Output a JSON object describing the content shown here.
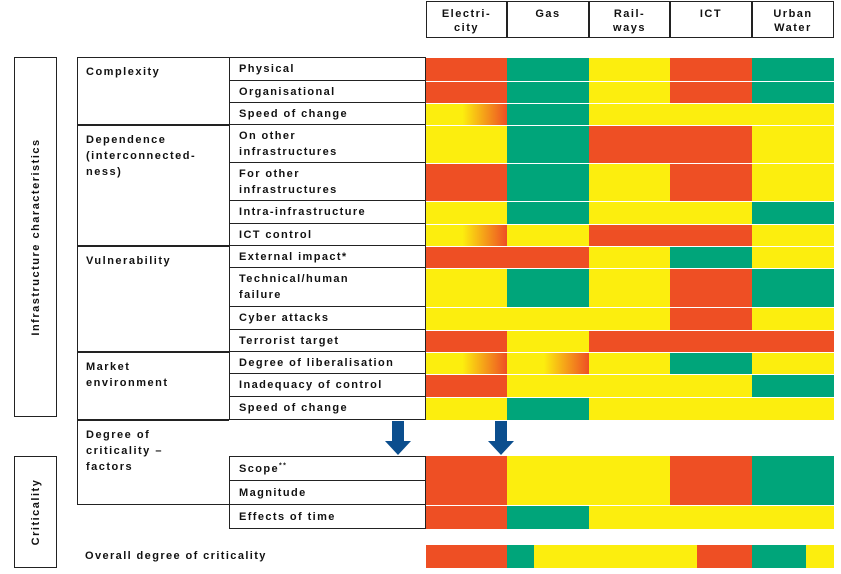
{
  "colors": {
    "red": "#ee4f24",
    "yellow": "#fcee0e",
    "green": "#00a57a",
    "arrow": "#0b4e8e"
  },
  "headers": [
    "Electri-\ncity",
    "Gas",
    "Rail-\nways",
    "ICT",
    "Urban\nWater"
  ],
  "side_labels": {
    "characteristics": "Infrastructure characteristics",
    "criticality": "Criticality"
  },
  "groups": [
    {
      "title": "Complexity"
    },
    {
      "title": "Dependence\n(interconnected-\nness)"
    },
    {
      "title": "Vulnerability"
    },
    {
      "title": "Market\nenvironment"
    },
    {
      "title": "Degree of\ncriticality –\nfactors"
    }
  ],
  "rows": [
    {
      "label": "Physical",
      "cells": [
        "red",
        "green",
        "yellow",
        "red",
        "green"
      ]
    },
    {
      "label": "Organisational",
      "cells": [
        "red",
        "green",
        "yellow",
        "red",
        "green"
      ]
    },
    {
      "label": "Speed of change",
      "cells": [
        "yellow-to-red",
        "green",
        "yellow",
        "yellow",
        "yellow"
      ]
    },
    {
      "label": "On other\ninfrastructures",
      "cells": [
        "yellow",
        "green",
        "red",
        "red",
        "yellow"
      ]
    },
    {
      "label": "For other\ninfrastructures",
      "cells": [
        "red",
        "green",
        "yellow",
        "red",
        "yellow"
      ]
    },
    {
      "label": "Intra-infrastructure",
      "cells": [
        "yellow",
        "green",
        "yellow",
        "yellow",
        "green"
      ]
    },
    {
      "label": "ICT control",
      "cells": [
        "yellow-to-red",
        "yellow",
        "red",
        "red",
        "yellow"
      ]
    },
    {
      "label": "External impact*",
      "cells": [
        "red",
        "red",
        "yellow",
        "green",
        "yellow"
      ]
    },
    {
      "label": "Technical/human\nfailure",
      "cells": [
        "yellow",
        "green",
        "yellow",
        "red",
        "green"
      ]
    },
    {
      "label": "Cyber attacks",
      "cells": [
        "yellow",
        "yellow",
        "yellow",
        "red",
        "yellow"
      ]
    },
    {
      "label": "Terrorist target",
      "cells": [
        "red",
        "yellow",
        "red",
        "red",
        "red"
      ]
    },
    {
      "label": "Degree of liberalisation",
      "cells": [
        "yellow-to-red",
        "yellow-to-red",
        "yellow",
        "green",
        "yellow"
      ]
    },
    {
      "label": "Inadequacy of control",
      "cells": [
        "red",
        "yellow",
        "yellow",
        "yellow",
        "green"
      ]
    },
    {
      "label": "Speed of change",
      "cells": [
        "yellow",
        "green",
        "yellow",
        "yellow",
        "yellow"
      ]
    },
    {
      "label": "Scope",
      "note": "**",
      "cells": [
        "red",
        "yellow",
        "yellow",
        "red",
        "green"
      ]
    },
    {
      "label": "Magnitude",
      "cells": [
        "red",
        "yellow",
        "yellow",
        "red",
        "green"
      ]
    },
    {
      "label": "Effects of time",
      "cells": [
        "red",
        "green",
        "yellow",
        "yellow",
        "yellow"
      ]
    },
    {
      "label": "Overall degree of criticality",
      "cells": [
        "red",
        "green-yellow",
        "yellow",
        "yellow-red",
        "green-yellow"
      ]
    }
  ]
}
